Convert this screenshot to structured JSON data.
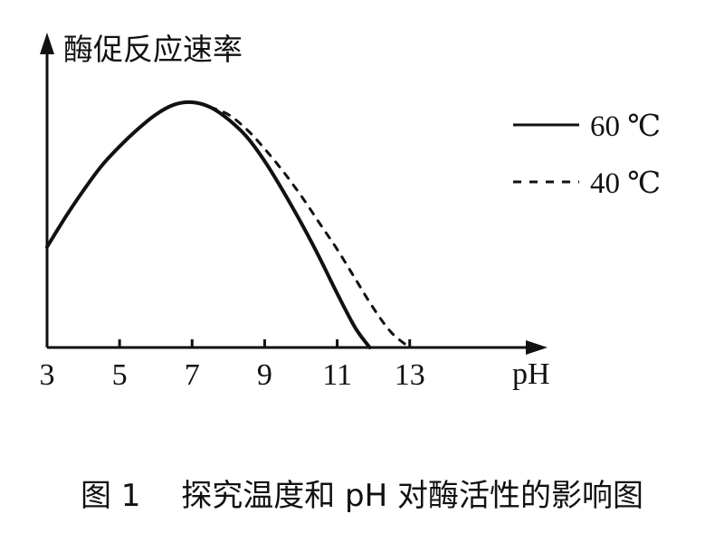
{
  "caption": "图 1　 探究温度和 pH 对酶活性的影响图",
  "chart_data": {
    "type": "line",
    "ylabel": "酶促反应速率",
    "xlabel": "pH",
    "xticks": [
      "3",
      "5",
      "7",
      "9",
      "11",
      "13"
    ],
    "xlim": [
      3,
      16.8
    ],
    "ylim": [
      0,
      1
    ],
    "legend_position": "right",
    "series": [
      {
        "name": "60 ℃",
        "style": "solid",
        "x": [
          3,
          3.5,
          4,
          4.5,
          5,
          5.5,
          6,
          6.5,
          7,
          7.5,
          8,
          8.5,
          9,
          9.5,
          10,
          10.5,
          11,
          11.5,
          11.9
        ],
        "y": [
          0.41,
          0.53,
          0.64,
          0.74,
          0.82,
          0.89,
          0.95,
          0.99,
          1.0,
          0.98,
          0.93,
          0.86,
          0.76,
          0.64,
          0.51,
          0.37,
          0.22,
          0.08,
          0
        ]
      },
      {
        "name": "40 ℃",
        "style": "dashed",
        "x": [
          7.5,
          8,
          8.5,
          9,
          9.5,
          10,
          10.5,
          11,
          11.5,
          12,
          12.5,
          13
        ],
        "y": [
          0.98,
          0.95,
          0.89,
          0.81,
          0.72,
          0.62,
          0.51,
          0.4,
          0.28,
          0.16,
          0.06,
          0
        ]
      }
    ]
  }
}
